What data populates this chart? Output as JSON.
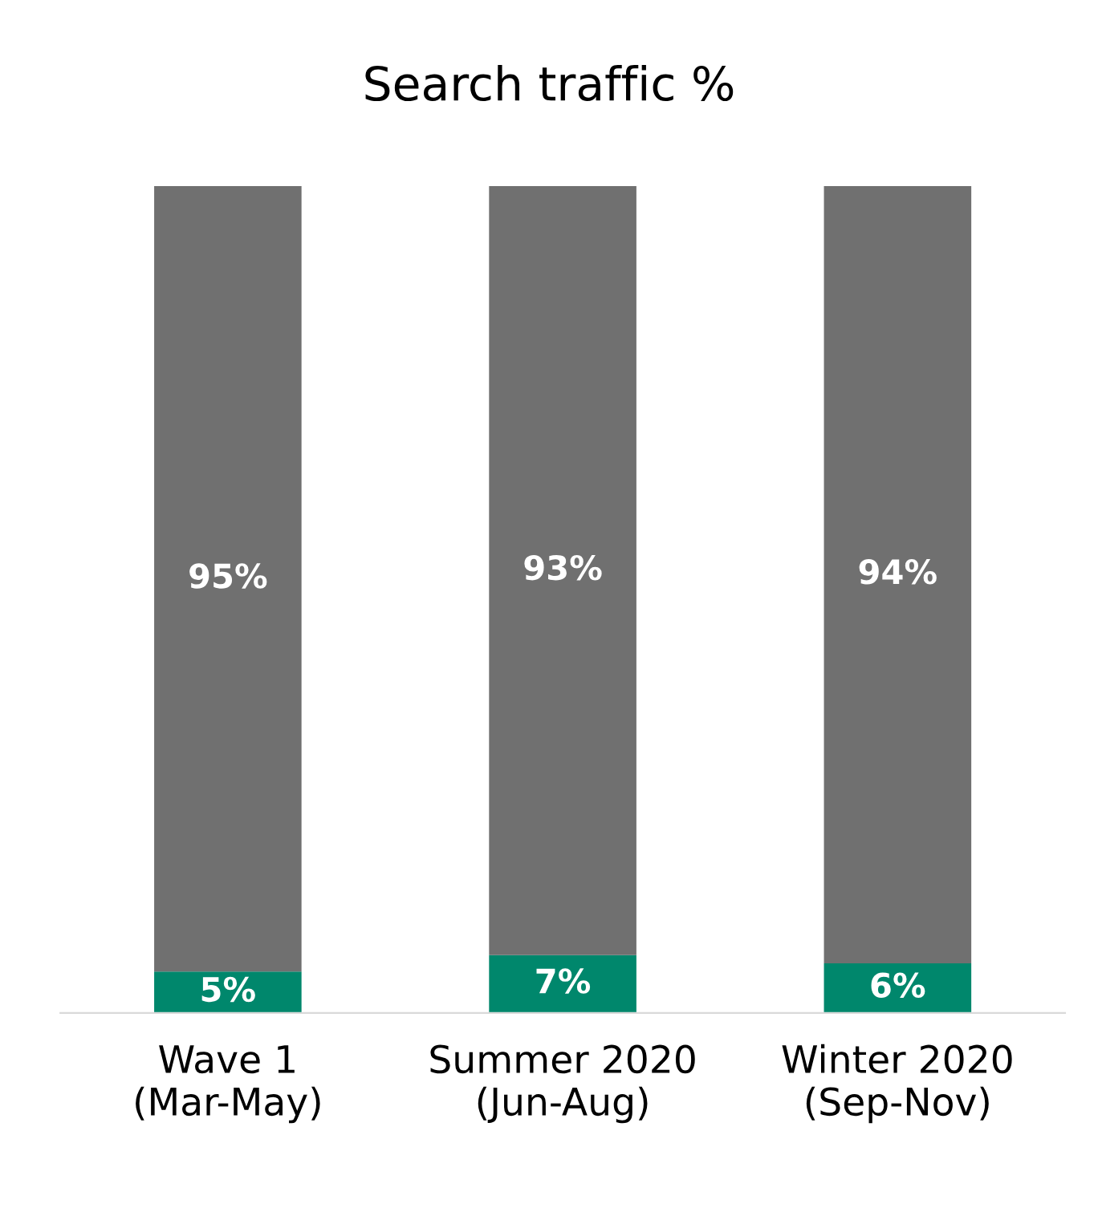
{
  "chart_data": {
    "type": "bar",
    "title": "Search traffic %",
    "stacked": true,
    "tick_labels": "x",
    "grid": false,
    "legend": false,
    "categories": [
      "Wave 1\n(Mar-May)",
      "Summer 2020\n(Jun-Aug)",
      "Winter 2020\n(Sep-Nov)"
    ],
    "series": [
      {
        "color": "#00876c",
        "values": [
          5,
          7,
          6
        ],
        "value_labels": [
          "5%",
          "7%",
          "6%"
        ]
      },
      {
        "color": "#707070",
        "values": [
          95,
          93,
          94
        ],
        "value_labels": [
          "95%",
          "93%",
          "94%"
        ]
      }
    ]
  }
}
